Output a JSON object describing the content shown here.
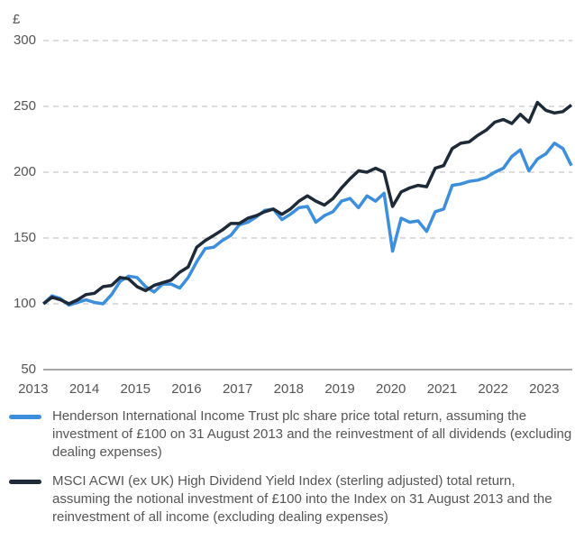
{
  "chart_data": {
    "type": "line",
    "y_label": "£",
    "x": [
      2013.2,
      2013.367,
      2013.533,
      2013.7,
      2013.867,
      2014.033,
      2014.2,
      2014.367,
      2014.533,
      2014.7,
      2014.867,
      2015.033,
      2015.2,
      2015.367,
      2015.533,
      2015.7,
      2015.867,
      2016.033,
      2016.2,
      2016.367,
      2016.533,
      2016.7,
      2016.867,
      2017.033,
      2017.2,
      2017.367,
      2017.533,
      2017.7,
      2017.867,
      2018.033,
      2018.2,
      2018.367,
      2018.533,
      2018.7,
      2018.867,
      2019.033,
      2019.2,
      2019.367,
      2019.533,
      2019.7,
      2019.867,
      2020.033,
      2020.2,
      2020.367,
      2020.533,
      2020.7,
      2020.867,
      2021.033,
      2021.2,
      2021.367,
      2021.533,
      2021.7,
      2021.867,
      2022.033,
      2022.2,
      2022.367,
      2022.533,
      2022.7,
      2022.867,
      2023.033,
      2023.2,
      2023.367,
      2023.533
    ],
    "series": [
      {
        "name": "Henderson International Income Trust plc share price total return, assuming the investment of £100 on 31 August 2013 and the reinvestment of all dividends (excluding dealing expenses)",
        "color": "#3d8fdc",
        "values": [
          100,
          106,
          104,
          99,
          101,
          103,
          101,
          100,
          107,
          117,
          121,
          120,
          113,
          109,
          115,
          115,
          112,
          120,
          132,
          142,
          143,
          148,
          152,
          160,
          162,
          166,
          171,
          172,
          164,
          168,
          173,
          174,
          162,
          167,
          170,
          178,
          180,
          173,
          182,
          178,
          184,
          140,
          165,
          162,
          163,
          155,
          170,
          172,
          190,
          191,
          193,
          194,
          196,
          200,
          203,
          212,
          217,
          201,
          210,
          214,
          222,
          218,
          205
        ]
      },
      {
        "name": "MSCI ACWI (ex UK) High Dividend Yield Index (sterling adjusted) total return, assuming the notional investment of £100 into the Index on 31 August 2013 and the reinvestment of all income (excluding dealing expenses)",
        "color": "#1e2a38",
        "values": [
          100,
          105,
          103,
          100,
          103,
          107,
          108,
          113,
          114,
          120,
          119,
          113,
          110,
          114,
          116,
          118,
          124,
          128,
          143,
          148,
          152,
          156,
          161,
          161,
          165,
          167,
          170,
          172,
          168,
          172,
          178,
          182,
          178,
          175,
          180,
          188,
          195,
          201,
          200,
          203,
          200,
          174,
          185,
          188,
          190,
          189,
          203,
          205,
          218,
          222,
          223,
          228,
          232,
          238,
          240,
          237,
          244,
          238,
          253,
          247,
          245,
          246,
          251
        ]
      }
    ],
    "xlim": [
      2012.65,
      2023.55
    ],
    "xticks": [
      2013,
      2014,
      2015,
      2016,
      2017,
      2018,
      2019,
      2020,
      2021,
      2022,
      2023
    ],
    "ylim": [
      50,
      300
    ],
    "yticks": [
      50,
      100,
      150,
      200,
      250,
      300
    ],
    "grid": true
  }
}
